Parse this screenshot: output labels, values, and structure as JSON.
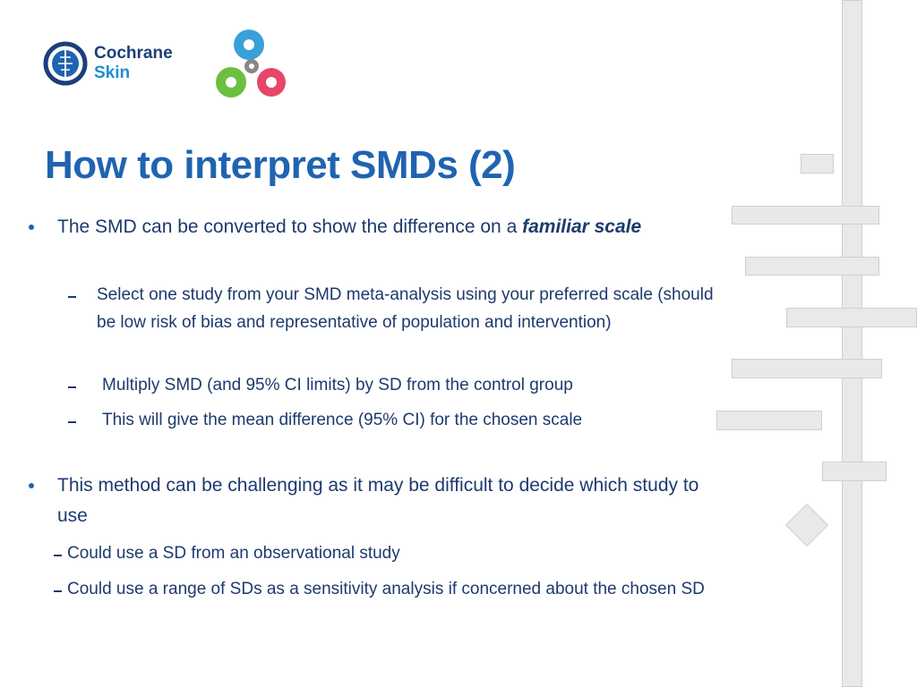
{
  "header": {
    "logo": {
      "line1": "Cochrane",
      "line2": "Skin"
    }
  },
  "title": "How to interpret SMDs (2)",
  "bullets": [
    {
      "text": "The SMD can be converted to show the difference on a",
      "emphasis": "familiar scale",
      "subitems": [
        "Select one study from your SMD meta-analysis using your preferred scale (should be low risk of bias and representative of population and intervention)",
        "Multiply SMD (and 95% CI limits) by SD from the control group",
        "This will give the mean difference (95% CI) for the chosen scale"
      ]
    },
    {
      "text": "This method can be challenging as it may be difficult to decide which study to use",
      "subitems": [
        "Could use a SD from an observational study",
        "Could use a range of SDs as a sensitivity analysis if concerned about the chosen SD"
      ]
    }
  ]
}
